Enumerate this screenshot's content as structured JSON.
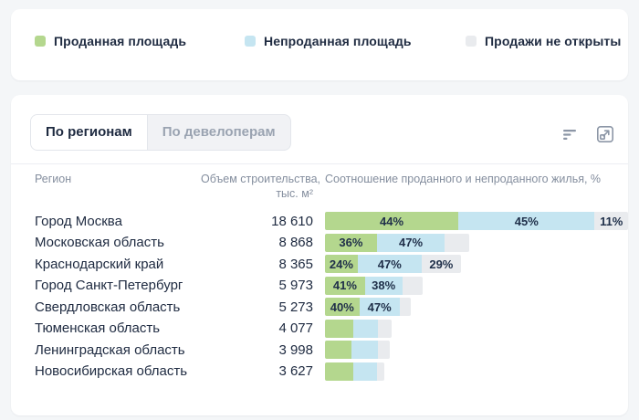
{
  "tabs": {
    "items": [
      {
        "label": "По регионам",
        "active": true
      },
      {
        "label": "По девелоперам",
        "active": false
      }
    ]
  },
  "toolbar": {
    "icons": [
      {
        "name": "sort-icon"
      },
      {
        "name": "expand-icon"
      }
    ]
  },
  "table_headers": {
    "region": "Регион",
    "volume_line1": "Объем строительства,",
    "volume_line2": "тыс. м²",
    "ratio": "Соотношение проданного и непроданного жилья, %"
  },
  "chart_data": {
    "type": "bar",
    "orientation": "horizontal",
    "stacked": true,
    "legend_position": "top",
    "value_suffix": "%",
    "bar_length_rule": "total bar length proportional to construction volume; max bar = Город Москва",
    "categories": [
      "Город Москва",
      "Московская область",
      "Краснодарский край",
      "Город Санкт-Петербург",
      "Свердловская область",
      "Тюменская область",
      "Ленинградская область",
      "Новосибирская область"
    ],
    "volumes_thousand_m2": [
      18610,
      8868,
      8365,
      5973,
      5273,
      4077,
      3998,
      3627
    ],
    "volume_display": [
      "18 610",
      "8 868",
      "8 365",
      "5 973",
      "5 273",
      "4 077",
      "3 998",
      "3 627"
    ],
    "series": [
      {
        "key": "sold",
        "name": "Проданная площадь",
        "color": "#b4d78e",
        "values": [
          44,
          36,
          24,
          41,
          40,
          43,
          41,
          48
        ],
        "labels": [
          "44%",
          "36%",
          "24%",
          "41%",
          "40%",
          "",
          "",
          ""
        ]
      },
      {
        "key": "unsold",
        "name": "Непроданная площадь",
        "color": "#c5e5f1",
        "values": [
          45,
          47,
          47,
          38,
          47,
          37,
          40,
          39
        ],
        "labels": [
          "45%",
          "47%",
          "47%",
          "38%",
          "47%",
          "",
          "",
          ""
        ]
      },
      {
        "key": "not_open",
        "name": "Продажи не открыты",
        "color": "#e9ebee",
        "values": [
          11,
          17,
          29,
          21,
          13,
          20,
          19,
          13
        ],
        "labels": [
          "11%",
          "",
          "29%",
          "",
          "",
          "",
          "",
          ""
        ]
      }
    ]
  }
}
